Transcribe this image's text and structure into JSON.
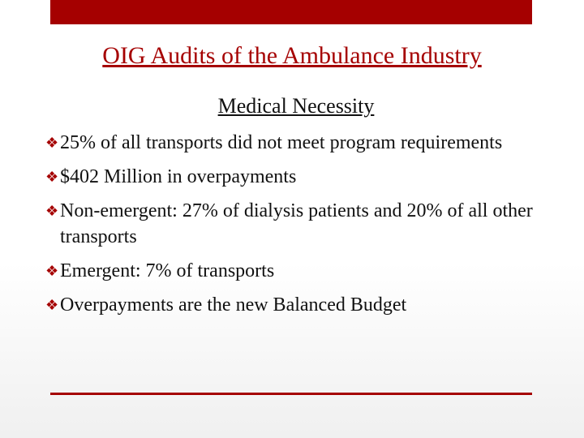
{
  "slide": {
    "title": "OIG Audits of the Ambulance Industry",
    "subtitle": "Medical Necessity",
    "bullets": [
      "25% of all transports did not meet program requirements",
      "$402 Million in overpayments",
      "Non-emergent: 27% of dialysis patients and 20% of all other transports",
      "Emergent: 7% of transports",
      "Overpayments are the new Balanced Budget"
    ]
  }
}
